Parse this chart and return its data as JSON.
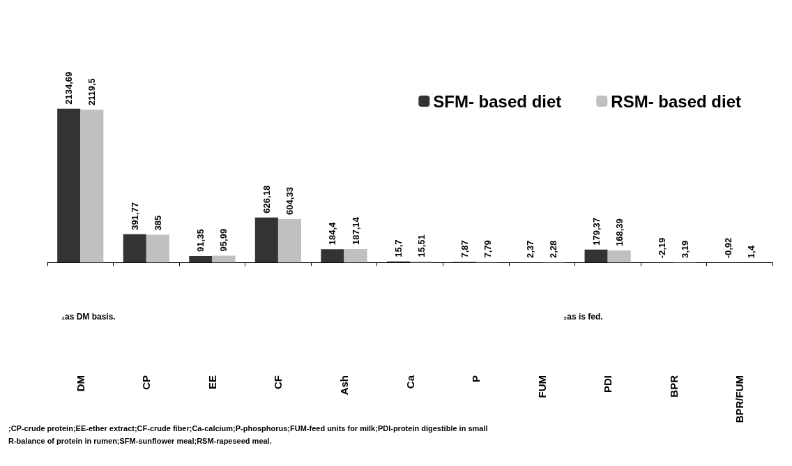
{
  "chart_data": {
    "type": "bar",
    "categories": [
      "DM",
      "CP",
      "EE",
      "CF",
      "Ash",
      "Ca",
      "P",
      "FUM",
      "PDI",
      "BPR",
      "BPR/FUM"
    ],
    "series": [
      {
        "name": "SFM- based diet",
        "color": "#333333",
        "values": [
          2134.69,
          391.77,
          91.35,
          626.18,
          184.4,
          15.7,
          7.87,
          2.37,
          179.37,
          -2.19,
          -0.92
        ],
        "value_labels": [
          "2134,69",
          "391,77",
          "91,35",
          "626,18",
          "184,4",
          "15,7",
          "7,87",
          "2,37",
          "179,37",
          "-2,19",
          "-0,92"
        ]
      },
      {
        "name": "RSM- based diet",
        "color": "#c0c0c0",
        "values": [
          2119.5,
          385,
          95.99,
          604.33,
          187.14,
          15.51,
          7.79,
          2.28,
          168.39,
          3.19,
          1.4
        ],
        "value_labels": [
          "2119,5",
          "385",
          "95,99",
          "604,33",
          "187,14",
          "15,51",
          "7,79",
          "2,28",
          "168,39",
          "3,19",
          "1,4"
        ]
      }
    ],
    "legend": "top right",
    "grid": false,
    "annotations": [
      "₁as DM basis.",
      "₂as is fed.",
      ";CP-crude protein;EE-ether extract;CF-crude fiber;Ca-calcium;P-phosphorus;FUM-feed units for milk;PDI-protein digestible in small",
      "R-balance of protein in rumen;SFM-sunflower meal;RSM-rapeseed meal."
    ]
  }
}
